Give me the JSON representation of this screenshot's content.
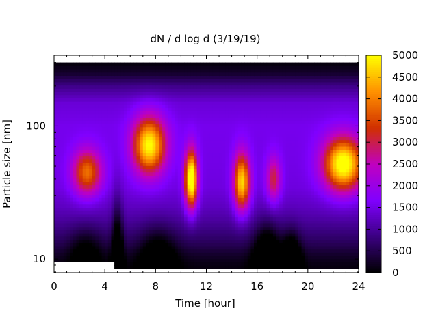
{
  "chart_data": {
    "type": "heatmap",
    "title": "dN / d log d (3/19/19)",
    "xlabel": "Time [hour]",
    "ylabel": "Particle size [nm]",
    "xlim": [
      0,
      24
    ],
    "ylim": [
      7.9,
      340
    ],
    "y_scale": "log",
    "data_y_range": [
      8.5,
      300
    ],
    "x_ticks": [
      0,
      4,
      8,
      12,
      16,
      20,
      24
    ],
    "x_tick_labels": [
      "0",
      "4",
      "8",
      "12",
      "16",
      "20",
      "24"
    ],
    "y_ticks": [
      10,
      100
    ],
    "y_tick_labels": [
      "10",
      "100"
    ],
    "colorbar": {
      "min": 0,
      "max": 5000,
      "ticks": [
        0,
        500,
        1000,
        1500,
        2000,
        2500,
        3000,
        3500,
        4000,
        4500,
        5000
      ],
      "tick_labels": [
        "0",
        "500",
        "1000",
        "1500",
        "2000",
        "2500",
        "3000",
        "3500",
        "4000",
        "4500",
        "5000"
      ],
      "colormap": [
        "#000000",
        "#3a0080",
        "#8000ff",
        "#c000c0",
        "#d03000",
        "#ff9000",
        "#ffff00"
      ]
    },
    "blanked_region": {
      "x_range": [
        0,
        4.7
      ],
      "y_range": [
        8.5,
        9.3
      ]
    },
    "background": {
      "size_nm": [
        8.5,
        9.5,
        11,
        13,
        16,
        20,
        25,
        35,
        50,
        100,
        150,
        200,
        250,
        300
      ],
      "value": [
        80,
        150,
        300,
        550,
        800,
        1050,
        1250,
        1450,
        1500,
        1550,
        1400,
        900,
        300,
        50
      ]
    },
    "modes": [
      {
        "time_hour": 2.6,
        "size_nm": 45,
        "peak": 2400,
        "time_width": 0.8,
        "log_size_width": 0.12
      },
      {
        "time_hour": 7.5,
        "size_nm": 72,
        "peak": 3500,
        "time_width": 0.9,
        "log_size_width": 0.15
      },
      {
        "time_hour": 10.8,
        "size_nm": 40,
        "peak": 4100,
        "time_width": 0.35,
        "log_size_width": 0.15
      },
      {
        "time_hour": 14.8,
        "size_nm": 38,
        "peak": 3300,
        "time_width": 0.45,
        "log_size_width": 0.15
      },
      {
        "time_hour": 17.3,
        "size_nm": 40,
        "peak": 1600,
        "time_width": 0.4,
        "log_size_width": 0.12
      },
      {
        "time_hour": 22.8,
        "size_nm": 52,
        "peak": 3800,
        "time_width": 1.1,
        "log_size_width": 0.14
      }
    ],
    "low_count_dips": [
      {
        "time_hour": 2.5,
        "size_nm": 12,
        "depth": 600,
        "time_width": 0.9,
        "log_size_width": 0.12
      },
      {
        "time_hour": 5.0,
        "size_nm": 10,
        "depth": 1400,
        "time_width": 0.3,
        "log_size_width": 0.3
      },
      {
        "time_hour": 8.2,
        "size_nm": 11,
        "depth": 800,
        "time_width": 1.0,
        "log_size_width": 0.15
      },
      {
        "time_hour": 16.8,
        "size_nm": 10,
        "depth": 1400,
        "time_width": 0.7,
        "log_size_width": 0.18
      },
      {
        "time_hour": 18.7,
        "size_nm": 9.5,
        "depth": 1400,
        "time_width": 0.5,
        "log_size_width": 0.15
      }
    ]
  }
}
